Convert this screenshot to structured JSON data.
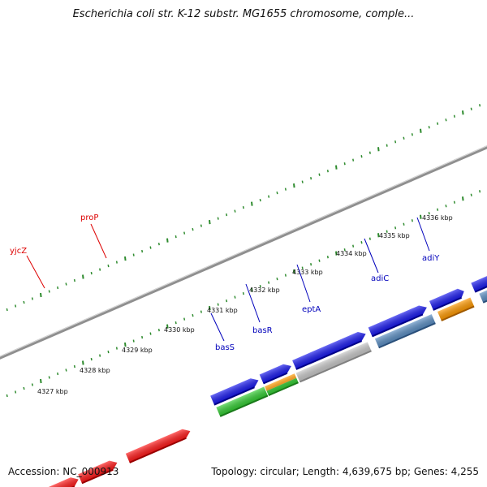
{
  "title": "Escherichia coli str. K-12 substr. MG1655 chromosome, comple...",
  "footer": {
    "accession": "Accession: NC_000913",
    "topology": "Topology: circular; Length: 4,639,675 bp; Genes: 4,255"
  },
  "colors": {
    "backbone": "#8f8f8f",
    "tick": "#2e8b2e",
    "forward_label": "#dd0000",
    "reverse_label": "#0000bb",
    "gene_red": "#ff1a1a",
    "gene_blue": "#1a1aee",
    "gene_green": "#33cc33",
    "gene_orange": "#ff9900",
    "gene_gray": "#c8c8c8",
    "gene_steel": "#5b8ec3"
  },
  "ruler": {
    "unit": "kbp",
    "labels": [
      "4327 kbp",
      "4328 kbp",
      "4329 kbp",
      "4330 kbp",
      "4331 kbp",
      "4332 kbp",
      "4333 kbp",
      "4334 kbp",
      "4335 kbp",
      "4336 kbp"
    ]
  },
  "forward_genes": {
    "label_yjcZ": "yjcZ",
    "label_proP": "proP"
  },
  "reverse_genes": {
    "label_basS": "basS",
    "label_basR": "basR",
    "label_eptA": "eptA",
    "label_adiC": "adiC",
    "label_adiY": "adiY"
  }
}
